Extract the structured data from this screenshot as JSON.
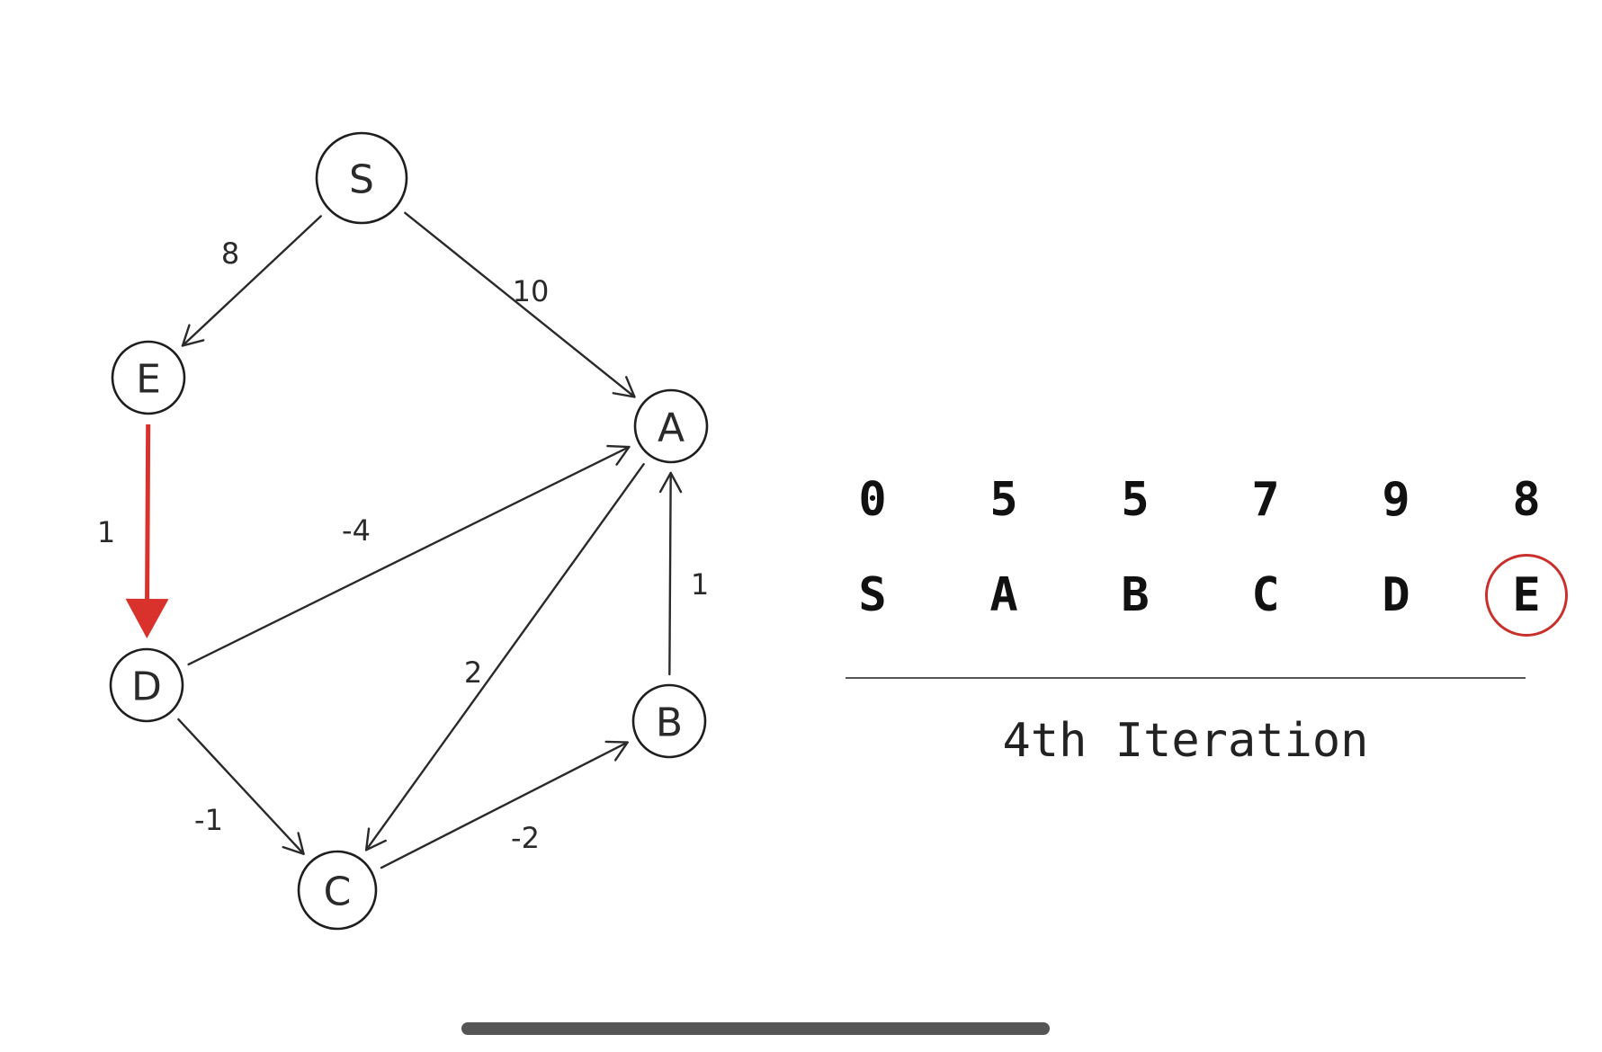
{
  "graph": {
    "nodes": [
      {
        "id": "S",
        "label": "S"
      },
      {
        "id": "E",
        "label": "E"
      },
      {
        "id": "A",
        "label": "A"
      },
      {
        "id": "D",
        "label": "D"
      },
      {
        "id": "B",
        "label": "B"
      },
      {
        "id": "C",
        "label": "C"
      }
    ],
    "edges": [
      {
        "from": "S",
        "to": "E",
        "weight": "8",
        "highlighted": false
      },
      {
        "from": "S",
        "to": "A",
        "weight": "10",
        "highlighted": false
      },
      {
        "from": "E",
        "to": "D",
        "weight": "1",
        "highlighted": true
      },
      {
        "from": "D",
        "to": "A",
        "weight": "-4",
        "highlighted": false
      },
      {
        "from": "A",
        "to": "C",
        "weight": "2",
        "highlighted": false
      },
      {
        "from": "B",
        "to": "A",
        "weight": "1",
        "highlighted": false
      },
      {
        "from": "D",
        "to": "C",
        "weight": "-1",
        "highlighted": false
      },
      {
        "from": "C",
        "to": "B",
        "weight": "-2",
        "highlighted": false
      }
    ],
    "highlight_color": "#d9312b"
  },
  "table": {
    "distances": [
      "0",
      "5",
      "5",
      "7",
      "9",
      "8"
    ],
    "vertices": [
      "S",
      "A",
      "B",
      "C",
      "D",
      "E"
    ],
    "highlighted_vertex": "E",
    "highlight_color": "#c9302c"
  },
  "iteration_label": "4th Iteration"
}
